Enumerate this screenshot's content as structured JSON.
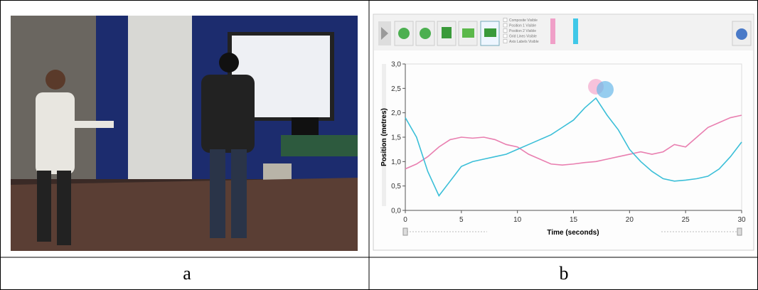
{
  "panels": {
    "left_label": "a",
    "right_label": "b"
  },
  "toolbar": {
    "checkboxes": [
      "Composite Visible",
      "Position 1 Visible",
      "Position 2 Visible",
      "Grid Lines Visible",
      "Axis Labels Visible"
    ]
  },
  "chart_data": {
    "type": "line",
    "xlabel": "Time (seconds)",
    "ylabel": "Position (metres)",
    "x": [
      0,
      1,
      2,
      3,
      4,
      5,
      6,
      7,
      8,
      9,
      10,
      11,
      12,
      13,
      14,
      15,
      16,
      17,
      18,
      19,
      20,
      21,
      22,
      23,
      24,
      25,
      26,
      27,
      28,
      29,
      30
    ],
    "series": [
      {
        "color": "#e97fb0",
        "values": [
          0.85,
          0.95,
          1.1,
          1.3,
          1.45,
          1.5,
          1.48,
          1.5,
          1.45,
          1.35,
          1.3,
          1.15,
          1.05,
          0.95,
          0.93,
          0.95,
          0.98,
          1.0,
          1.05,
          1.1,
          1.15,
          1.2,
          1.15,
          1.2,
          1.35,
          1.3,
          1.5,
          1.7,
          1.8,
          1.9,
          1.95
        ]
      },
      {
        "color": "#3bbfd8",
        "values": [
          1.9,
          1.5,
          0.8,
          0.3,
          0.6,
          0.9,
          1.0,
          1.05,
          1.1,
          1.15,
          1.25,
          1.35,
          1.45,
          1.55,
          1.7,
          1.85,
          2.1,
          2.3,
          1.95,
          1.65,
          1.25,
          1.0,
          0.8,
          0.65,
          0.6,
          0.62,
          0.65,
          0.7,
          0.85,
          1.1,
          1.4
        ]
      }
    ],
    "xlim": [
      0,
      30
    ],
    "xticks": [
      0,
      5,
      10,
      15,
      20,
      25,
      30
    ],
    "ylim": [
      0,
      3
    ],
    "yticks": [
      {
        "value": 0,
        "label": "0,0"
      },
      {
        "value": 0.5,
        "label": "0,5"
      },
      {
        "value": 1,
        "label": "1,0"
      },
      {
        "value": 1.5,
        "label": "1,5"
      },
      {
        "value": 2,
        "label": "2,0"
      },
      {
        "value": 2.5,
        "label": "2,5"
      },
      {
        "value": 3,
        "label": "3,0"
      }
    ],
    "grid": false
  }
}
